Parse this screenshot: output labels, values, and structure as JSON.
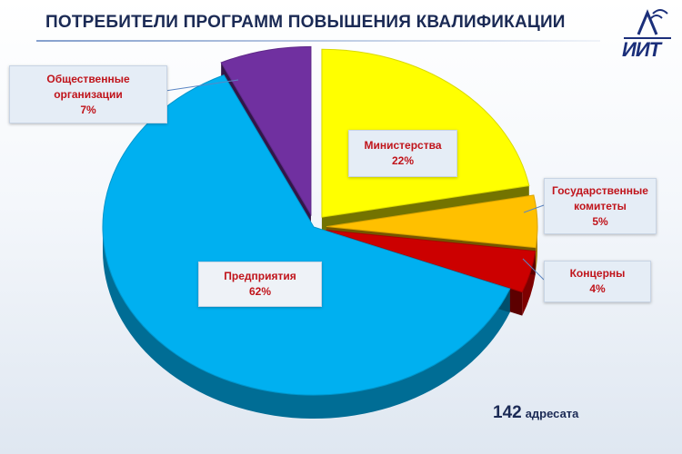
{
  "title": "ПОТРЕБИТЕЛИ ПРОГРАММ ПОВЫШЕНИЯ КВАЛИФИКАЦИИ",
  "logo_text": "ИИТ",
  "total": {
    "number": "142",
    "unit": "адресата"
  },
  "chart_data": {
    "type": "pie",
    "title": "ПОТРЕБИТЕЛИ ПРОГРАММ ПОВЫШЕНИЯ КВАЛИФИКАЦИИ",
    "three_d": true,
    "slices": [
      {
        "label": "Министерства",
        "value": 22,
        "value_text": "22%",
        "color": "#ffff00"
      },
      {
        "label": "Государственные комитеты",
        "value": 5,
        "value_text": "5%",
        "color": "#ffc000"
      },
      {
        "label": "Концерны",
        "value": 4,
        "value_text": "4%",
        "color": "#cc0000"
      },
      {
        "label": "Предприятия",
        "value": 62,
        "value_text": "62%",
        "color": "#00b0f0"
      },
      {
        "label": "Общественные организации",
        "value": 7,
        "value_text": "7%",
        "color": "#7030a0"
      }
    ]
  },
  "labels": {
    "ministries": {
      "line1": "Министерства",
      "line2": "22%"
    },
    "committees": {
      "line1": "Государственные",
      "line2": "комитеты",
      "line3": "5%"
    },
    "concerns": {
      "line1": "Концерны",
      "line2": "4%"
    },
    "enterprises": {
      "line1": "Предприятия",
      "line2": "62%"
    },
    "organizations": {
      "line1": "Общественные",
      "line2": "организации",
      "line3": "7%"
    }
  },
  "colors": {
    "title": "#1b2a55",
    "label_text": "#c0141b",
    "logo": "#1b2f7a"
  }
}
